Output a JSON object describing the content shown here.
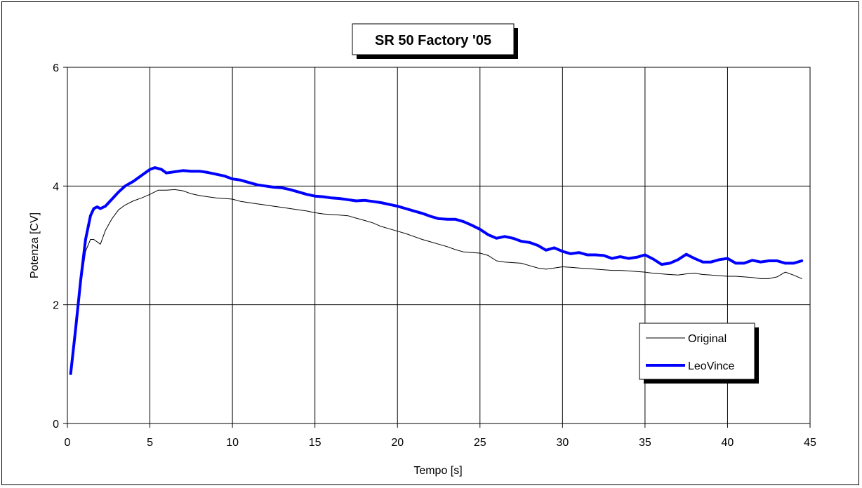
{
  "chart_data": {
    "type": "line",
    "title": "SR 50 Factory '05",
    "xlabel": "Tempo [s]",
    "ylabel": "Potenza [CV]",
    "xlim": [
      0,
      45
    ],
    "ylim": [
      0,
      6
    ],
    "xticks": [
      0,
      5,
      10,
      15,
      20,
      25,
      30,
      35,
      40,
      45
    ],
    "yticks": [
      0,
      2,
      4,
      6
    ],
    "grid": true,
    "legend_position": "bottom-right",
    "series": [
      {
        "name": "Original",
        "color": "#000000",
        "width": "thin",
        "x": [
          0.2,
          0.5,
          0.8,
          1.1,
          1.4,
          1.6,
          2.0,
          2.3,
          2.7,
          3.1,
          3.5,
          4.0,
          4.5,
          5.0,
          5.5,
          6.0,
          6.5,
          7.0,
          7.5,
          8.0,
          8.5,
          9.0,
          9.5,
          10.0,
          10.5,
          11.0,
          11.5,
          12.0,
          12.5,
          13.0,
          13.5,
          14.0,
          14.5,
          15.0,
          15.5,
          16.0,
          16.5,
          17.0,
          17.5,
          18.0,
          18.5,
          19.0,
          19.5,
          20.0,
          20.5,
          21.0,
          21.5,
          22.0,
          22.5,
          23.0,
          23.5,
          24.0,
          24.5,
          25.0,
          25.5,
          26.0,
          26.5,
          27.0,
          27.5,
          28.0,
          28.5,
          29.0,
          29.5,
          30.0,
          30.5,
          31.0,
          31.5,
          32.0,
          32.5,
          33.0,
          33.5,
          34.0,
          34.5,
          35.0,
          35.5,
          36.0,
          36.5,
          37.0,
          37.5,
          38.0,
          38.5,
          39.0,
          39.5,
          40.0,
          40.5,
          41.0,
          41.5,
          42.0,
          42.5,
          43.0,
          43.5,
          44.0,
          44.5
        ],
        "y": [
          0.84,
          1.6,
          2.3,
          2.9,
          3.1,
          3.1,
          3.02,
          3.25,
          3.45,
          3.6,
          3.68,
          3.75,
          3.8,
          3.86,
          3.93,
          3.93,
          3.94,
          3.92,
          3.87,
          3.84,
          3.82,
          3.8,
          3.79,
          3.78,
          3.74,
          3.72,
          3.7,
          3.68,
          3.66,
          3.64,
          3.62,
          3.6,
          3.58,
          3.55,
          3.53,
          3.52,
          3.51,
          3.5,
          3.46,
          3.42,
          3.38,
          3.32,
          3.28,
          3.24,
          3.2,
          3.15,
          3.1,
          3.06,
          3.02,
          2.98,
          2.93,
          2.89,
          2.88,
          2.87,
          2.83,
          2.74,
          2.72,
          2.71,
          2.7,
          2.66,
          2.62,
          2.6,
          2.62,
          2.64,
          2.63,
          2.62,
          2.61,
          2.6,
          2.59,
          2.58,
          2.58,
          2.57,
          2.56,
          2.55,
          2.53,
          2.52,
          2.51,
          2.5,
          2.52,
          2.53,
          2.51,
          2.5,
          2.49,
          2.48,
          2.48,
          2.47,
          2.46,
          2.44,
          2.44,
          2.47,
          2.55,
          2.5,
          2.44
        ]
      },
      {
        "name": "LeoVince",
        "color": "#0000ff",
        "width": "thick",
        "x": [
          0.2,
          0.5,
          0.8,
          1.1,
          1.4,
          1.6,
          1.8,
          2.0,
          2.3,
          2.7,
          3.1,
          3.5,
          4.0,
          4.5,
          5.0,
          5.3,
          5.7,
          6.0,
          6.5,
          7.0,
          7.5,
          8.0,
          8.5,
          9.0,
          9.5,
          10.0,
          10.5,
          11.0,
          11.5,
          12.0,
          12.5,
          13.0,
          13.5,
          14.0,
          14.5,
          15.0,
          15.5,
          16.0,
          16.5,
          17.0,
          17.5,
          18.0,
          18.5,
          19.0,
          19.5,
          20.0,
          20.5,
          21.0,
          21.5,
          22.0,
          22.5,
          23.0,
          23.5,
          24.0,
          24.5,
          25.0,
          25.5,
          26.0,
          26.5,
          27.0,
          27.5,
          28.0,
          28.5,
          29.0,
          29.5,
          30.0,
          30.5,
          31.0,
          31.5,
          32.0,
          32.5,
          33.0,
          33.5,
          34.0,
          34.5,
          35.0,
          35.5,
          36.0,
          36.5,
          37.0,
          37.5,
          38.0,
          38.5,
          39.0,
          39.5,
          40.0,
          40.5,
          41.0,
          41.5,
          42.0,
          42.5,
          43.0,
          43.5,
          44.0,
          44.5
        ],
        "y": [
          0.84,
          1.6,
          2.4,
          3.1,
          3.5,
          3.62,
          3.65,
          3.62,
          3.66,
          3.78,
          3.9,
          4.0,
          4.08,
          4.18,
          4.28,
          4.31,
          4.28,
          4.22,
          4.24,
          4.26,
          4.25,
          4.25,
          4.23,
          4.2,
          4.17,
          4.12,
          4.1,
          4.06,
          4.02,
          4.0,
          3.98,
          3.97,
          3.94,
          3.9,
          3.86,
          3.83,
          3.82,
          3.8,
          3.79,
          3.77,
          3.75,
          3.76,
          3.74,
          3.72,
          3.69,
          3.66,
          3.62,
          3.58,
          3.54,
          3.49,
          3.45,
          3.44,
          3.44,
          3.4,
          3.34,
          3.27,
          3.18,
          3.12,
          3.15,
          3.12,
          3.07,
          3.05,
          3.0,
          2.92,
          2.96,
          2.9,
          2.86,
          2.88,
          2.84,
          2.84,
          2.83,
          2.78,
          2.81,
          2.78,
          2.8,
          2.84,
          2.77,
          2.68,
          2.7,
          2.76,
          2.85,
          2.78,
          2.72,
          2.72,
          2.76,
          2.78,
          2.7,
          2.7,
          2.75,
          2.72,
          2.74,
          2.74,
          2.7,
          2.7,
          2.74
        ]
      }
    ]
  }
}
